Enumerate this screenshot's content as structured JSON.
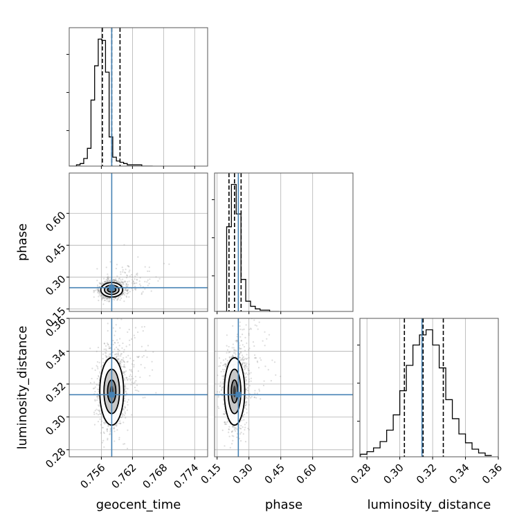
{
  "chart_data": {
    "type": "corner",
    "parameters": [
      "geocent_time",
      "phase",
      "luminosity_distance"
    ],
    "axis_labels": {
      "geocent_time": "geocent_time",
      "phase": "phase",
      "luminosity_distance": "luminosity_distance"
    },
    "ranges": {
      "geocent_time": [
        0.7498,
        0.7765
      ],
      "phase": [
        0.138,
        0.79
      ],
      "luminosity_distance": [
        0.2757,
        0.36
      ]
    },
    "ticks": {
      "geocent_time": {
        "values": [
          0.756,
          0.762,
          0.768,
          0.774
        ],
        "labels": [
          "0.756",
          "0.762",
          "0.768",
          "0.774"
        ]
      },
      "phase": {
        "values": [
          0.15,
          0.3,
          0.45,
          0.6
        ],
        "labels": [
          "0.15",
          "0.30",
          "0.45",
          "0.60"
        ]
      },
      "luminosity_distance": {
        "values": [
          0.28,
          0.3,
          0.32,
          0.34,
          0.36
        ],
        "labels": [
          "0.28",
          "0.30",
          "0.32",
          "0.34",
          "0.36"
        ]
      }
    },
    "truths": {
      "geocent_time": 0.758,
      "phase": 0.25,
      "luminosity_distance": 0.3135
    },
    "quantiles": {
      "geocent_time": [
        0.7562,
        0.758,
        0.7596
      ],
      "phase": [
        0.206,
        0.232,
        0.263
      ],
      "luminosity_distance": [
        0.3028,
        0.3142,
        0.3265
      ]
    },
    "histograms": {
      "geocent_time": {
        "bin_edges": [
          0.7498,
          0.7505,
          0.7512,
          0.7519,
          0.7526,
          0.7533,
          0.754,
          0.7547,
          0.7554,
          0.7561,
          0.7568,
          0.7575,
          0.7582,
          0.7589,
          0.7596,
          0.7603,
          0.761,
          0.7617,
          0.7624,
          0.7631,
          0.7638,
          0.7645,
          0.7652,
          0.7659
        ],
        "counts": [
          0,
          0,
          1,
          2,
          6,
          14,
          52,
          79,
          100,
          99,
          74,
          23,
          7,
          4,
          3,
          2,
          1,
          1,
          1,
          1,
          0,
          0,
          0
        ]
      },
      "phase": {
        "bin_edges": [
          0.15,
          0.1725,
          0.195,
          0.2175,
          0.24,
          0.2625,
          0.285,
          0.3075,
          0.33,
          0.3525,
          0.375,
          0.3975,
          0.42,
          0.4425
        ],
        "counts": [
          0,
          0,
          66,
          99,
          76,
          25,
          8,
          4,
          2,
          1,
          1,
          0,
          0
        ]
      },
      "luminosity_distance": {
        "bin_edges": [
          0.276,
          0.28,
          0.284,
          0.288,
          0.292,
          0.296,
          0.3,
          0.304,
          0.308,
          0.312,
          0.316,
          0.32,
          0.324,
          0.328,
          0.332,
          0.336,
          0.34,
          0.344,
          0.348,
          0.352,
          0.356
        ],
        "counts": [
          2,
          4,
          7,
          12,
          21,
          33,
          52,
          72,
          88,
          96,
          100,
          88,
          70,
          45,
          30,
          18,
          11,
          6,
          3,
          1
        ]
      }
    },
    "contours_2d": {
      "geocent_time__phase": {
        "x_param": "geocent_time",
        "y_param": "phase",
        "center": [
          0.758,
          0.24
        ],
        "levels_sigma": [
          {
            "x": 0.0021,
            "y": 0.034
          },
          {
            "x": 0.0014,
            "y": 0.022
          },
          {
            "x": 0.0008,
            "y": 0.011
          }
        ]
      },
      "geocent_time__luminosity_distance": {
        "x_param": "geocent_time",
        "y_param": "luminosity_distance",
        "center": [
          0.758,
          0.3155
        ],
        "levels_sigma": [
          {
            "x": 0.0023,
            "y": 0.0205
          },
          {
            "x": 0.0015,
            "y": 0.0135
          },
          {
            "x": 0.0008,
            "y": 0.007
          }
        ]
      },
      "phase__luminosity_distance": {
        "x_param": "phase",
        "y_param": "luminosity_distance",
        "center": [
          0.232,
          0.3155
        ],
        "levels_sigma": [
          {
            "x": 0.048,
            "y": 0.0205
          },
          {
            "x": 0.03,
            "y": 0.0135
          },
          {
            "x": 0.015,
            "y": 0.007
          }
        ]
      }
    },
    "grid": true,
    "colors": {
      "truth": "#4682b4",
      "hist": "#000000",
      "samples": "#9a9a9a",
      "grid": "#b0b0b0"
    }
  }
}
